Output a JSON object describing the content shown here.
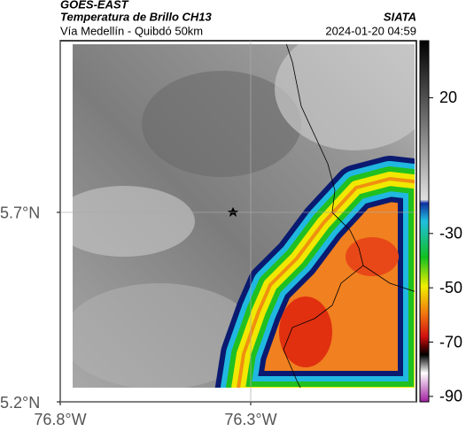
{
  "header": {
    "source": "GOES-EAST",
    "title": "Temperatura de Brillo CH13",
    "agency": "SIATA",
    "subtitle": "Vía Medellín - Quibdó 50km",
    "timestamp": "2024-01-20 04:59"
  },
  "map": {
    "xlim": [
      -76.8,
      -75.865
    ],
    "ylim": [
      5.2,
      6.153
    ],
    "xticks": [
      {
        "value": -76.8,
        "label": "76.8°W"
      },
      {
        "value": -76.3,
        "label": "76.3°W"
      }
    ],
    "yticks": [
      {
        "value": 5.7,
        "label": "5.7°N"
      },
      {
        "value": 5.2,
        "label": "5.2°N"
      }
    ],
    "grid": true
  },
  "colorbar": {
    "lim": [
      -92,
      41
    ],
    "ticks": [
      20,
      -30,
      -50,
      -70,
      -90
    ]
  }
}
